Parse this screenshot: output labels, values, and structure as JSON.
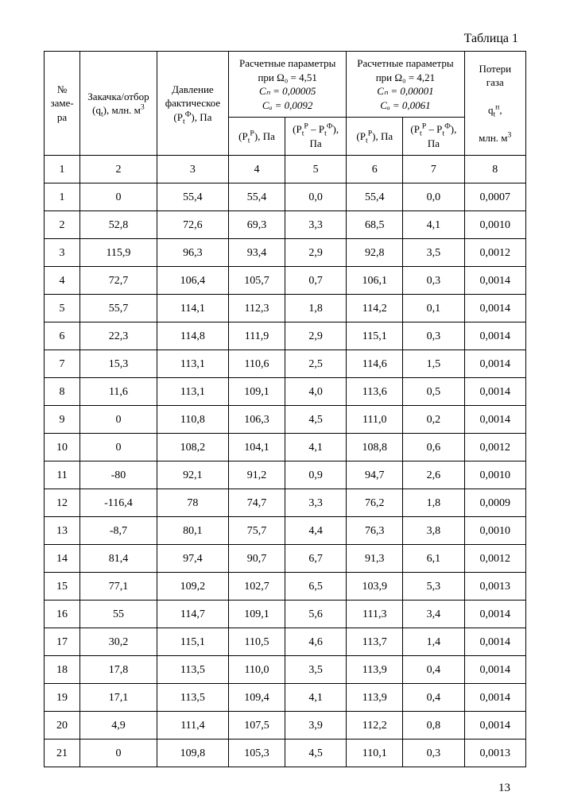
{
  "caption": "Таблица 1",
  "pageNumber": "13",
  "head": {
    "col_zamer": "№\nзаме-\nра",
    "col_qt": "Закачка/отбор\n(qₜ), млн. м³",
    "col_pfact": "Давление\nфактическое\n(PₜФ), Па",
    "group451_title": "Расчетные параметры\nпри Ω₀ = 4,51",
    "group451_cn": "Cₙ = 0,00005",
    "group451_ca": "Cₐ = 0,0092",
    "group421_title": "Расчетные параметры\nпри Ω₀ = 4,21",
    "group421_cn": "Cₙ = 0,00001",
    "group421_ca": "Cₐ = 0,0061",
    "col_loss": "Потери\nгаза\n\nqₜⁿ,\n\nмлн. м³",
    "sub_ptp": "(PₜР), Па",
    "sub_diff": "(PₜР – PₜФ),\nПа"
  },
  "rows": [
    [
      "1",
      "2",
      "3",
      "4",
      "5",
      "6",
      "7",
      "8"
    ],
    [
      "1",
      "0",
      "55,4",
      "55,4",
      "0,0",
      "55,4",
      "0,0",
      "0,0007"
    ],
    [
      "2",
      "52,8",
      "72,6",
      "69,3",
      "3,3",
      "68,5",
      "4,1",
      "0,0010"
    ],
    [
      "3",
      "115,9",
      "96,3",
      "93,4",
      "2,9",
      "92,8",
      "3,5",
      "0,0012"
    ],
    [
      "4",
      "72,7",
      "106,4",
      "105,7",
      "0,7",
      "106,1",
      "0,3",
      "0,0014"
    ],
    [
      "5",
      "55,7",
      "114,1",
      "112,3",
      "1,8",
      "114,2",
      "0,1",
      "0,0014"
    ],
    [
      "6",
      "22,3",
      "114,8",
      "111,9",
      "2,9",
      "115,1",
      "0,3",
      "0,0014"
    ],
    [
      "7",
      "15,3",
      "113,1",
      "110,6",
      "2,5",
      "114,6",
      "1,5",
      "0,0014"
    ],
    [
      "8",
      "11,6",
      "113,1",
      "109,1",
      "4,0",
      "113,6",
      "0,5",
      "0,0014"
    ],
    [
      "9",
      "0",
      "110,8",
      "106,3",
      "4,5",
      "111,0",
      "0,2",
      "0,0014"
    ],
    [
      "10",
      "0",
      "108,2",
      "104,1",
      "4,1",
      "108,8",
      "0,6",
      "0,0012"
    ],
    [
      "11",
      "-80",
      "92,1",
      "91,2",
      "0,9",
      "94,7",
      "2,6",
      "0,0010"
    ],
    [
      "12",
      "-116,4",
      "78",
      "74,7",
      "3,3",
      "76,2",
      "1,8",
      "0,0009"
    ],
    [
      "13",
      "-8,7",
      "80,1",
      "75,7",
      "4,4",
      "76,3",
      "3,8",
      "0,0010"
    ],
    [
      "14",
      "81,4",
      "97,4",
      "90,7",
      "6,7",
      "91,3",
      "6,1",
      "0,0012"
    ],
    [
      "15",
      "77,1",
      "109,2",
      "102,7",
      "6,5",
      "103,9",
      "5,3",
      "0,0013"
    ],
    [
      "16",
      "55",
      "114,7",
      "109,1",
      "5,6",
      "111,3",
      "3,4",
      "0,0014"
    ],
    [
      "17",
      "30,2",
      "115,1",
      "110,5",
      "4,6",
      "113,7",
      "1,4",
      "0,0014"
    ],
    [
      "18",
      "17,8",
      "113,5",
      "110,0",
      "3,5",
      "113,9",
      "0,4",
      "0,0014"
    ],
    [
      "19",
      "17,1",
      "113,5",
      "109,4",
      "4,1",
      "113,9",
      "0,4",
      "0,0014"
    ],
    [
      "20",
      "4,9",
      "111,4",
      "107,5",
      "3,9",
      "112,2",
      "0,8",
      "0,0014"
    ],
    [
      "21",
      "0",
      "109,8",
      "105,3",
      "4,5",
      "110,1",
      "0,3",
      "0,0013"
    ]
  ],
  "colWidths": [
    "7%",
    "15%",
    "14%",
    "11%",
    "12%",
    "11%",
    "12%",
    "12%"
  ]
}
